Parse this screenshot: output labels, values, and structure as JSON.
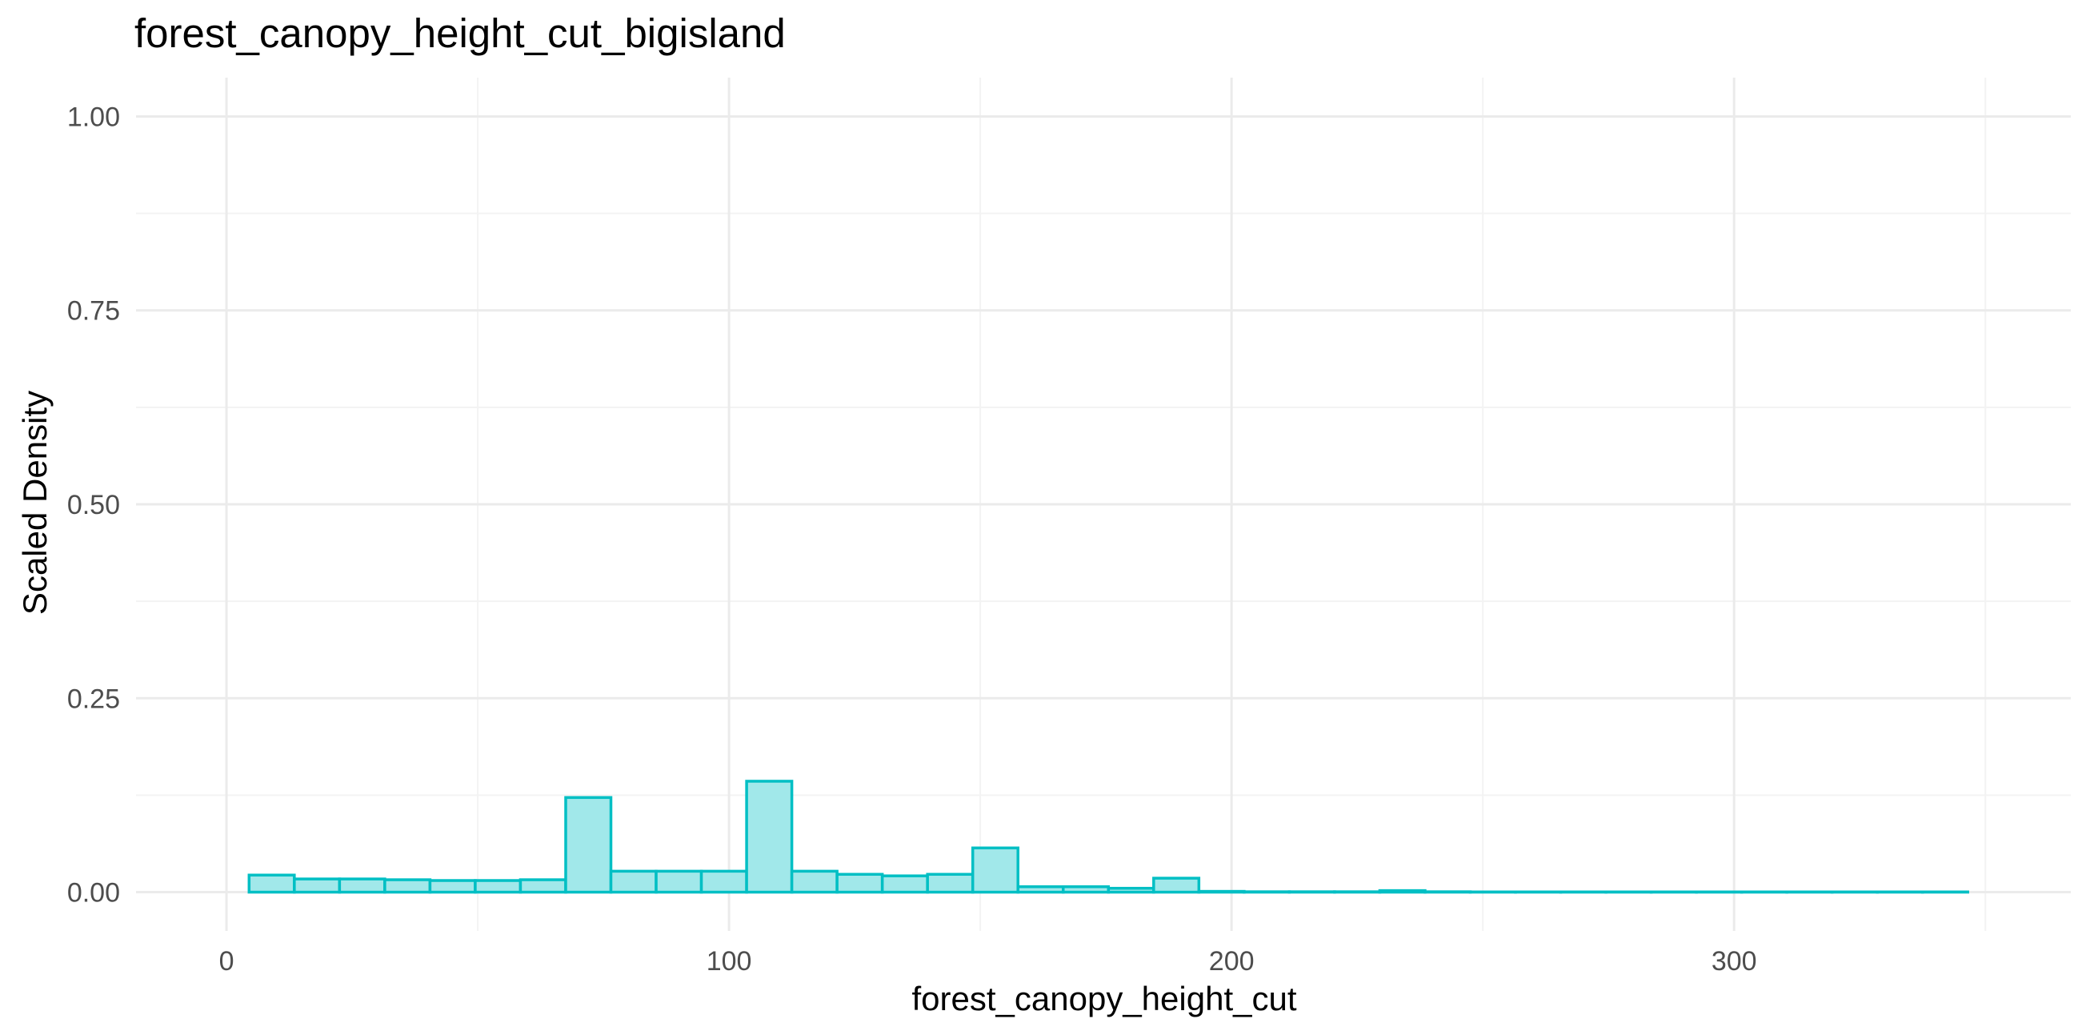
{
  "chart_data": {
    "type": "bar",
    "title": "forest_canopy_height_cut_bigisland",
    "xlabel": "forest_canopy_height_cut",
    "ylabel": "Scaled Density",
    "xlim": [
      -18,
      367
    ],
    "ylim": [
      -0.05,
      1.05
    ],
    "x_ticks": [
      0,
      100,
      200,
      300
    ],
    "x_tick_labels": [
      "0",
      "100",
      "200",
      "300"
    ],
    "y_ticks": [
      0.0,
      0.25,
      0.5,
      0.75,
      1.0
    ],
    "y_tick_labels": [
      "0.00",
      "0.25",
      "0.50",
      "0.75",
      "1.00"
    ],
    "grid": true,
    "bin_width": 9,
    "bin_starts": [
      4.5,
      13.5,
      22.5,
      31.5,
      40.5,
      49.5,
      58.5,
      67.5,
      76.5,
      85.5,
      94.5,
      103.5,
      112.5,
      121.5,
      130.5,
      139.5,
      148.5,
      157.5,
      166.5,
      175.5,
      184.5,
      193.5,
      202.5,
      211.5,
      220.5,
      229.5,
      238.5,
      247.5,
      256.5,
      265.5,
      274.5,
      283.5,
      292.5,
      301.5,
      310.5,
      319.5,
      328.5,
      337.5
    ],
    "values": [
      0.022,
      0.017,
      0.017,
      0.016,
      0.015,
      0.015,
      0.016,
      0.122,
      0.027,
      0.027,
      0.027,
      0.143,
      0.027,
      0.023,
      0.021,
      0.023,
      0.057,
      0.007,
      0.007,
      0.005,
      0.018,
      0.001,
      0.0005,
      0.0005,
      0.0005,
      0.002,
      0.0005,
      0.0003,
      0.0003,
      0.0003,
      0.0003,
      0.0003,
      0.0003,
      0.0003,
      0.0003,
      0.0003,
      0.0003,
      0.0003
    ],
    "colors": {
      "bar_fill": "#a1e8ea",
      "bar_stroke": "#00bfc4",
      "grid_major": "#ebebeb",
      "grid_minor": "#f3f3f3"
    }
  }
}
